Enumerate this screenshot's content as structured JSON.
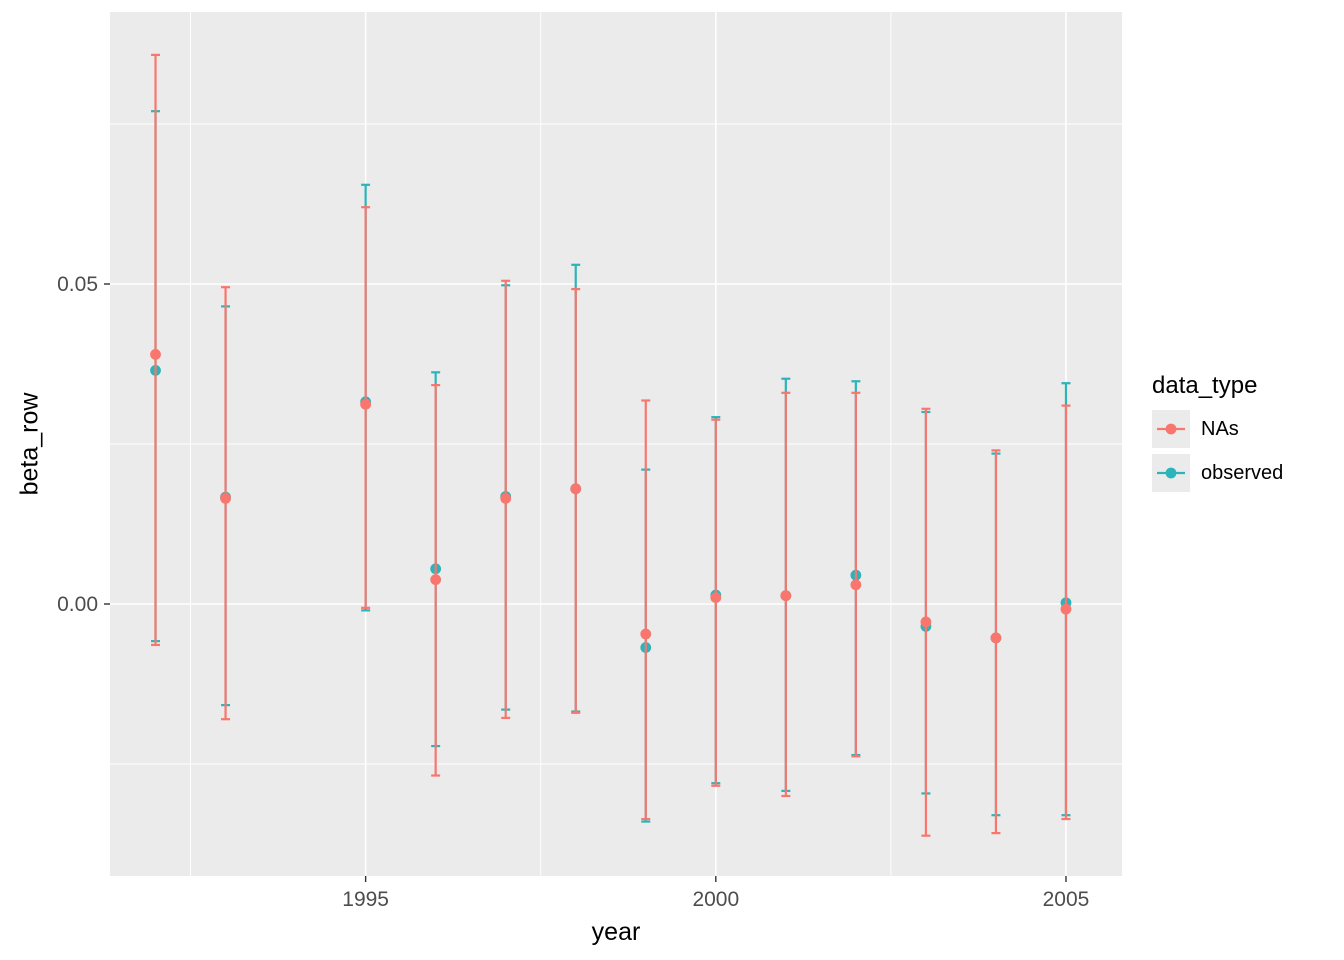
{
  "chart_data": {
    "type": "pointrange",
    "title": "",
    "xlabel": "year",
    "ylabel": "beta_row",
    "xlim": [
      1991.35,
      2005.8
    ],
    "ylim": [
      -0.0425,
      0.0925
    ],
    "x_major_ticks": [
      1995,
      2000,
      2005
    ],
    "x_tick_labels": [
      "1995",
      "2000",
      "2005"
    ],
    "x_minor_gridlines": [
      1992.5,
      1997.5,
      2002.5
    ],
    "y_major_ticks": [
      0.0,
      0.05
    ],
    "y_tick_labels": [
      "0.00",
      "0.05"
    ],
    "y_minor_gridlines": [
      -0.025,
      0.025,
      0.075
    ],
    "panel_background": "#EBEBEB",
    "gridline_color": "#FFFFFF",
    "axis_text_color": "#4D4D4D",
    "legend": {
      "title": "data_type",
      "position": "right",
      "entries": [
        {
          "label": "NAs",
          "color": "#F8766D"
        },
        {
          "label": "observed",
          "color": "#2BB5BA"
        }
      ]
    },
    "series": [
      {
        "name": "NAs",
        "color": "#F8766D",
        "points": [
          {
            "x": 1992,
            "y": 0.039,
            "ymin": -0.0064,
            "ymax": 0.0858
          },
          {
            "x": 1993,
            "y": 0.0165,
            "ymin": -0.018,
            "ymax": 0.0495
          },
          {
            "x": 1995,
            "y": 0.0312,
            "ymin": -0.0006,
            "ymax": 0.062
          },
          {
            "x": 1996,
            "y": 0.0038,
            "ymin": -0.0268,
            "ymax": 0.0342
          },
          {
            "x": 1997,
            "y": 0.0165,
            "ymin": -0.0178,
            "ymax": 0.0505
          },
          {
            "x": 1998,
            "y": 0.018,
            "ymin": -0.017,
            "ymax": 0.0492
          },
          {
            "x": 1999,
            "y": -0.0047,
            "ymin": -0.0336,
            "ymax": 0.0318
          },
          {
            "x": 2000,
            "y": 0.001,
            "ymin": -0.0284,
            "ymax": 0.0288
          },
          {
            "x": 2001,
            "y": 0.0013,
            "ymin": -0.03,
            "ymax": 0.033
          },
          {
            "x": 2002,
            "y": 0.003,
            "ymin": -0.0238,
            "ymax": 0.033
          },
          {
            "x": 2003,
            "y": -0.0028,
            "ymin": -0.0362,
            "ymax": 0.0305
          },
          {
            "x": 2004,
            "y": -0.0053,
            "ymin": -0.0358,
            "ymax": 0.024
          },
          {
            "x": 2005,
            "y": -0.0008,
            "ymin": -0.0336,
            "ymax": 0.031
          }
        ]
      },
      {
        "name": "observed",
        "color": "#2BB5BA",
        "points": [
          {
            "x": 1992,
            "y": 0.0365,
            "ymin": -0.0058,
            "ymax": 0.077
          },
          {
            "x": 1993,
            "y": 0.0167,
            "ymin": -0.0158,
            "ymax": 0.0465
          },
          {
            "x": 1995,
            "y": 0.0316,
            "ymin": -0.001,
            "ymax": 0.0655
          },
          {
            "x": 1996,
            "y": 0.0055,
            "ymin": -0.0222,
            "ymax": 0.0362
          },
          {
            "x": 1997,
            "y": 0.0168,
            "ymin": -0.0165,
            "ymax": 0.0498
          },
          {
            "x": 1998,
            "y": 0.018,
            "ymin": -0.0168,
            "ymax": 0.053
          },
          {
            "x": 1999,
            "y": -0.0068,
            "ymin": -0.034,
            "ymax": 0.021
          },
          {
            "x": 2000,
            "y": 0.0014,
            "ymin": -0.028,
            "ymax": 0.0292
          },
          {
            "x": 2001,
            "y": 0.0013,
            "ymin": -0.0292,
            "ymax": 0.0352
          },
          {
            "x": 2002,
            "y": 0.0045,
            "ymin": -0.0236,
            "ymax": 0.0348
          },
          {
            "x": 2003,
            "y": -0.0035,
            "ymin": -0.0296,
            "ymax": 0.03
          },
          {
            "x": 2004,
            "y": -0.0053,
            "ymin": -0.033,
            "ymax": 0.0235
          },
          {
            "x": 2005,
            "y": 0.0002,
            "ymin": -0.033,
            "ymax": 0.0345
          }
        ]
      }
    ]
  }
}
